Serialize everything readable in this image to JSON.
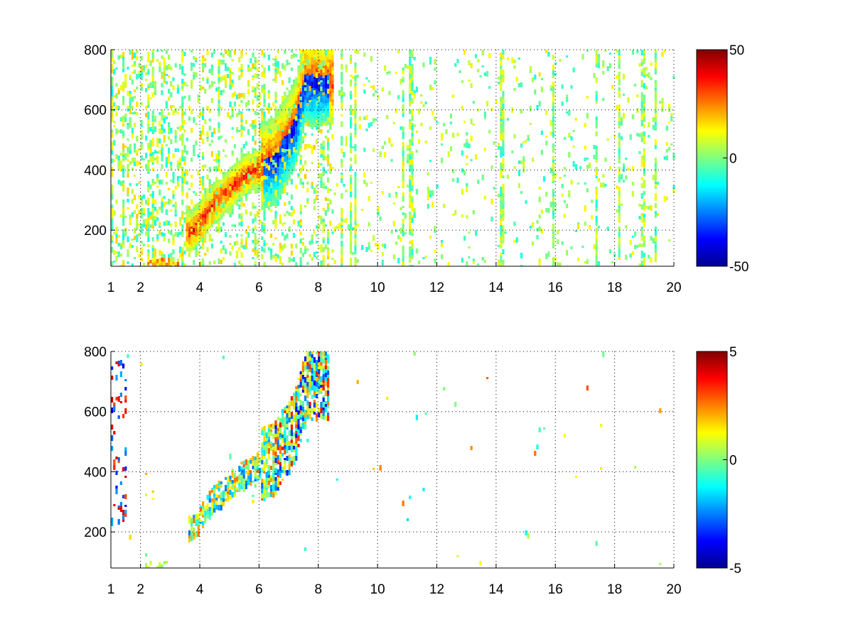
{
  "chart_data": [
    {
      "type": "heatmap",
      "title": "",
      "xlabel": "",
      "ylabel": "",
      "x_ticks": [
        1,
        2,
        4,
        6,
        8,
        10,
        12,
        14,
        16,
        18,
        20
      ],
      "y_ticks": [
        200,
        400,
        600,
        800
      ],
      "xlim": [
        1,
        20
      ],
      "ylim": [
        80,
        800
      ],
      "grid": true,
      "colormap": "jet",
      "colorbar": {
        "range": [
          -50,
          50
        ],
        "ticks": [
          50,
          0,
          -50
        ]
      },
      "features": {
        "ridge_band": [
          [
            3.7,
            200
          ],
          [
            4.5,
            300
          ],
          [
            5.5,
            390
          ],
          [
            6.5,
            440
          ],
          [
            7.2,
            560
          ],
          [
            7.5,
            700
          ]
        ],
        "positive_peak_center": [
          5.6,
          390
        ],
        "negative_peak_center": [
          7.2,
          490
        ],
        "value_range": [
          -50,
          50
        ]
      }
    },
    {
      "type": "heatmap",
      "title": "",
      "xlabel": "",
      "ylabel": "",
      "x_ticks": [
        1,
        2,
        4,
        6,
        8,
        10,
        12,
        14,
        16,
        18,
        20
      ],
      "y_ticks": [
        200,
        400,
        600,
        800
      ],
      "xlim": [
        1,
        20
      ],
      "ylim": [
        80,
        800
      ],
      "grid": true,
      "colormap": "jet",
      "colorbar": {
        "range": [
          -5,
          5
        ],
        "ticks": [
          5,
          0,
          -5
        ]
      },
      "features": {
        "ridge_band": [
          [
            3.7,
            220
          ],
          [
            4.5,
            320
          ],
          [
            5.5,
            400
          ],
          [
            6.5,
            450
          ],
          [
            7.2,
            560
          ],
          [
            7.6,
            700
          ]
        ],
        "value_range": [
          -5,
          5
        ]
      }
    }
  ]
}
